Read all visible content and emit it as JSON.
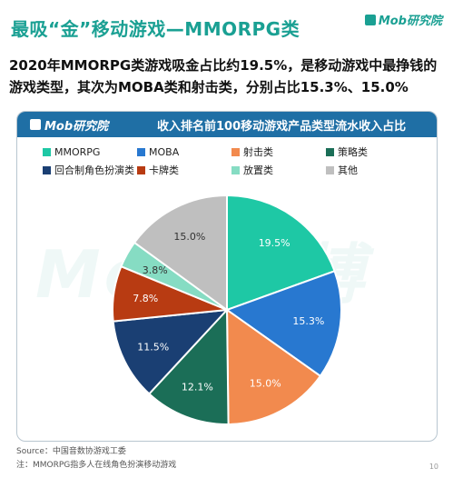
{
  "header": {
    "title": "最吸“金”移动游戏—MMORPG类",
    "logo_text": "Mob研究院"
  },
  "subtitle": "2020年MMORPG类游戏吸金占比约19.5%，是移动游戏中最挣钱的游戏类型，其次为MOBA类和射击类，分别占比15.3%、15.0%",
  "panel": {
    "logo_text": "Mob研究院",
    "title": "收入排名前100移动游戏产品类型流水收入占比"
  },
  "watermark": "Mob 袤博",
  "chart_data": {
    "type": "pie",
    "title": "收入排名前100移动游戏产品类型流水收入占比",
    "unit": "%",
    "start_angle_deg": 0,
    "legend_position": "top",
    "slices": [
      {
        "name": "MMORPG",
        "value": 19.5,
        "label": "19.5%",
        "color": "#1ec8a5"
      },
      {
        "name": "MOBA",
        "value": 15.3,
        "label": "15.3%",
        "color": "#2878d0"
      },
      {
        "name": "射击类",
        "value": 15.0,
        "label": "15.0%",
        "color": "#f28a4e"
      },
      {
        "name": "策略类",
        "value": 12.1,
        "label": "12.1%",
        "color": "#1b6e57"
      },
      {
        "name": "回合制角色扮演类",
        "value": 11.5,
        "label": "11.5%",
        "color": "#1a3f73"
      },
      {
        "name": "卡牌类",
        "value": 7.8,
        "label": "7.8%",
        "color": "#b83b12"
      },
      {
        "name": "放置类",
        "value": 3.8,
        "label": "3.8%",
        "color": "#86dcc3"
      },
      {
        "name": "其他",
        "value": 15.0,
        "label": "15.0%",
        "color": "#bfbfbf"
      }
    ]
  },
  "footer": {
    "source": "Source：中国音数协游戏工委",
    "note": "注：MMORPG指多人在线角色扮演移动游戏",
    "page": "10"
  }
}
